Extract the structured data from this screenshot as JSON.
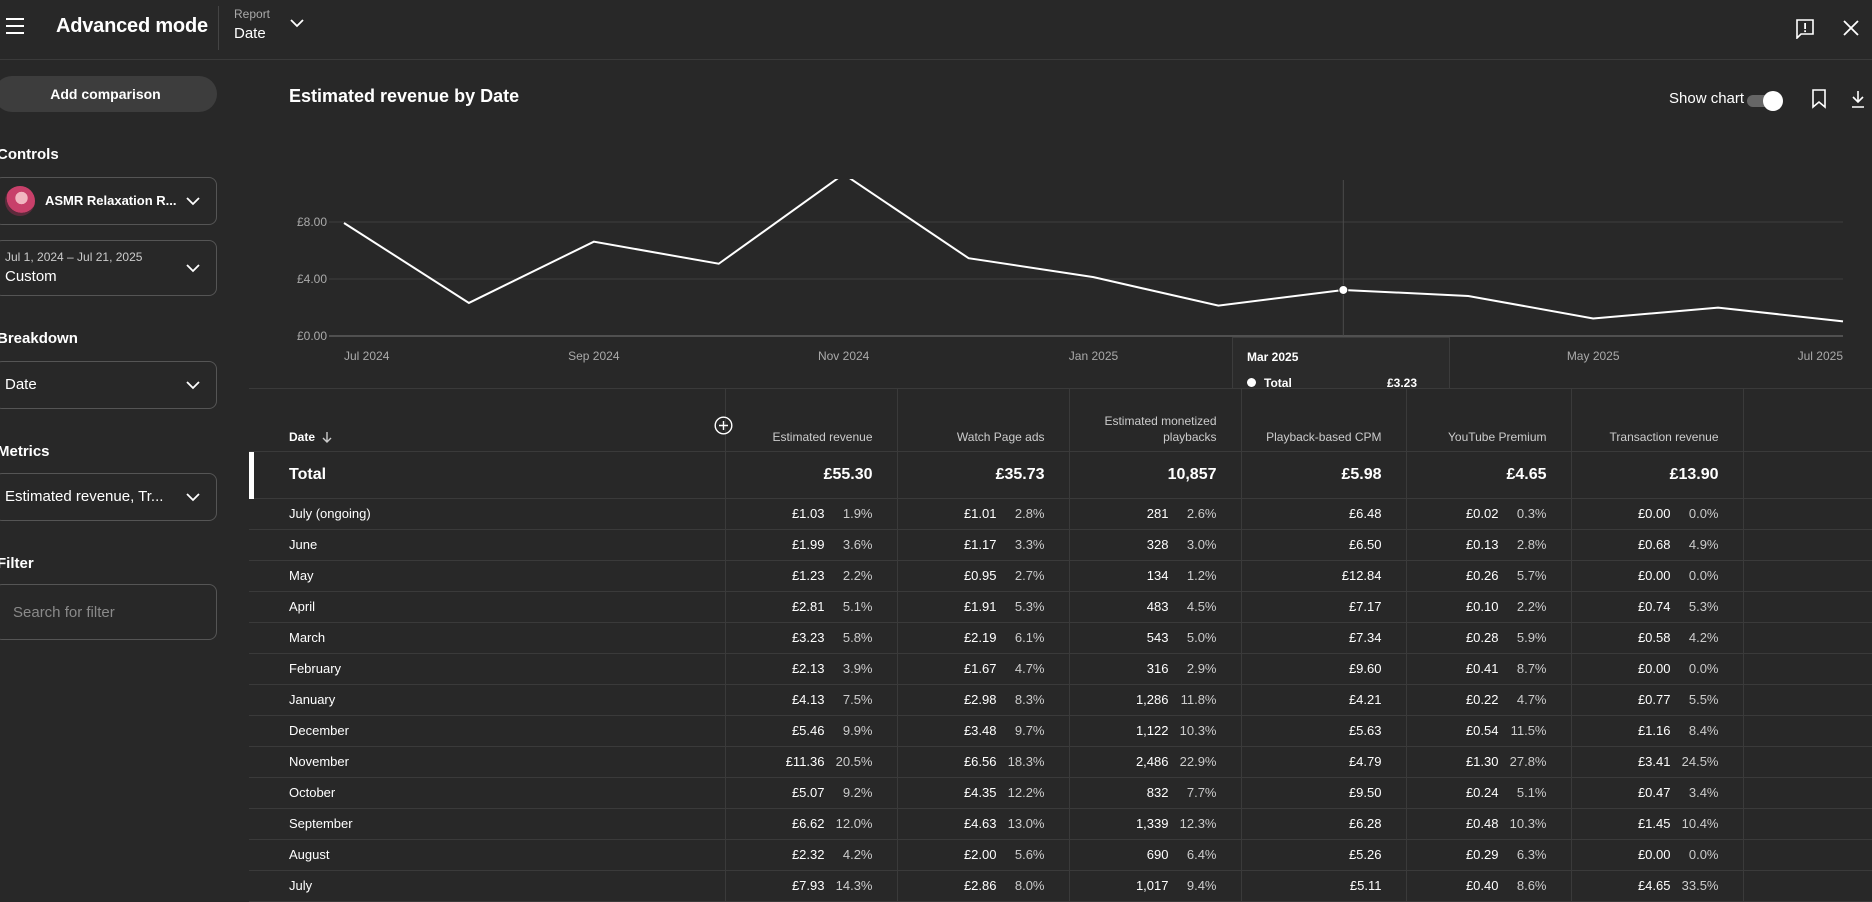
{
  "header": {
    "title": "Advanced mode",
    "report_label": "Report",
    "report_value": "Date"
  },
  "sidebar": {
    "add_comparison": "Add comparison",
    "controls_label": "Controls",
    "channel_name": "ASMR Relaxation R...",
    "date_range": "Jul 1, 2024 – Jul 21, 2025",
    "date_mode": "Custom",
    "breakdown_label": "Breakdown",
    "breakdown_value": "Date",
    "metrics_label": "Metrics",
    "metrics_value": "Estimated revenue, Tr...",
    "filter_label": "Filter",
    "filter_placeholder": "Search for filter"
  },
  "chart_header": {
    "title": "Estimated revenue by Date",
    "show_chart_label": "Show chart",
    "show_chart_on": true
  },
  "chart_data": {
    "type": "line",
    "title": "Estimated revenue by Date",
    "x": [
      "2024-07",
      "2024-08",
      "2024-09",
      "2024-10",
      "2024-11",
      "2024-12",
      "2025-01",
      "2025-02",
      "2025-03",
      "2025-04",
      "2025-05",
      "2025-06",
      "2025-07"
    ],
    "series": [
      {
        "name": "Total",
        "values": [
          7.93,
          2.32,
          6.62,
          5.07,
          11.36,
          5.46,
          4.13,
          2.13,
          3.23,
          2.81,
          1.23,
          1.99,
          1.03
        ]
      }
    ],
    "x_tick_labels": [
      "Jul 2024",
      "Sep 2024",
      "Nov 2024",
      "Jan 2025",
      "Mar 2025",
      "May 2025",
      "Jul 2025"
    ],
    "y_tick_labels": [
      "£0.00",
      "£4.00",
      "£8.00"
    ],
    "y_ticks": [
      0,
      4,
      8
    ],
    "ylim": [
      0,
      10
    ],
    "grid": true,
    "hover": {
      "index": 8,
      "date": "Mar 2025",
      "series": "Total",
      "value": "£3.23"
    },
    "line_color": "#ffffff"
  },
  "table": {
    "date_header": "Date",
    "columns": [
      "Estimated revenue",
      "Watch Page ads",
      "Estimated monetized playbacks",
      "Playback-based CPM",
      "YouTube Premium",
      "Transaction revenue"
    ],
    "total": {
      "label": "Total",
      "values": [
        "£55.30",
        "£35.73",
        "10,857",
        "£5.98",
        "£4.65",
        "£13.90"
      ]
    },
    "rows": [
      {
        "label": "July (ongoing)",
        "cells": [
          [
            "£1.03",
            "1.9%"
          ],
          [
            "£1.01",
            "2.8%"
          ],
          [
            "281",
            "2.6%"
          ],
          [
            "£6.48",
            ""
          ],
          [
            "£0.02",
            "0.3%"
          ],
          [
            "£0.00",
            "0.0%"
          ]
        ]
      },
      {
        "label": "June",
        "cells": [
          [
            "£1.99",
            "3.6%"
          ],
          [
            "£1.17",
            "3.3%"
          ],
          [
            "328",
            "3.0%"
          ],
          [
            "£6.50",
            ""
          ],
          [
            "£0.13",
            "2.8%"
          ],
          [
            "£0.68",
            "4.9%"
          ]
        ]
      },
      {
        "label": "May",
        "cells": [
          [
            "£1.23",
            "2.2%"
          ],
          [
            "£0.95",
            "2.7%"
          ],
          [
            "134",
            "1.2%"
          ],
          [
            "£12.84",
            ""
          ],
          [
            "£0.26",
            "5.7%"
          ],
          [
            "£0.00",
            "0.0%"
          ]
        ]
      },
      {
        "label": "April",
        "cells": [
          [
            "£2.81",
            "5.1%"
          ],
          [
            "£1.91",
            "5.3%"
          ],
          [
            "483",
            "4.5%"
          ],
          [
            "£7.17",
            ""
          ],
          [
            "£0.10",
            "2.2%"
          ],
          [
            "£0.74",
            "5.3%"
          ]
        ]
      },
      {
        "label": "March",
        "cells": [
          [
            "£3.23",
            "5.8%"
          ],
          [
            "£2.19",
            "6.1%"
          ],
          [
            "543",
            "5.0%"
          ],
          [
            "£7.34",
            ""
          ],
          [
            "£0.28",
            "5.9%"
          ],
          [
            "£0.58",
            "4.2%"
          ]
        ]
      },
      {
        "label": "February",
        "cells": [
          [
            "£2.13",
            "3.9%"
          ],
          [
            "£1.67",
            "4.7%"
          ],
          [
            "316",
            "2.9%"
          ],
          [
            "£9.60",
            ""
          ],
          [
            "£0.41",
            "8.7%"
          ],
          [
            "£0.00",
            "0.0%"
          ]
        ]
      },
      {
        "label": "January",
        "cells": [
          [
            "£4.13",
            "7.5%"
          ],
          [
            "£2.98",
            "8.3%"
          ],
          [
            "1,286",
            "11.8%"
          ],
          [
            "£4.21",
            ""
          ],
          [
            "£0.22",
            "4.7%"
          ],
          [
            "£0.77",
            "5.5%"
          ]
        ]
      },
      {
        "label": "December",
        "cells": [
          [
            "£5.46",
            "9.9%"
          ],
          [
            "£3.48",
            "9.7%"
          ],
          [
            "1,122",
            "10.3%"
          ],
          [
            "£5.63",
            ""
          ],
          [
            "£0.54",
            "11.5%"
          ],
          [
            "£1.16",
            "8.4%"
          ]
        ]
      },
      {
        "label": "November",
        "cells": [
          [
            "£11.36",
            "20.5%"
          ],
          [
            "£6.56",
            "18.3%"
          ],
          [
            "2,486",
            "22.9%"
          ],
          [
            "£4.79",
            ""
          ],
          [
            "£1.30",
            "27.8%"
          ],
          [
            "£3.41",
            "24.5%"
          ]
        ]
      },
      {
        "label": "October",
        "cells": [
          [
            "£5.07",
            "9.2%"
          ],
          [
            "£4.35",
            "12.2%"
          ],
          [
            "832",
            "7.7%"
          ],
          [
            "£9.50",
            ""
          ],
          [
            "£0.24",
            "5.1%"
          ],
          [
            "£0.47",
            "3.4%"
          ]
        ]
      },
      {
        "label": "September",
        "cells": [
          [
            "£6.62",
            "12.0%"
          ],
          [
            "£4.63",
            "13.0%"
          ],
          [
            "1,339",
            "12.3%"
          ],
          [
            "£6.28",
            ""
          ],
          [
            "£0.48",
            "10.3%"
          ],
          [
            "£1.45",
            "10.4%"
          ]
        ]
      },
      {
        "label": "August",
        "cells": [
          [
            "£2.32",
            "4.2%"
          ],
          [
            "£2.00",
            "5.6%"
          ],
          [
            "690",
            "6.4%"
          ],
          [
            "£5.26",
            ""
          ],
          [
            "£0.29",
            "6.3%"
          ],
          [
            "£0.00",
            "0.0%"
          ]
        ]
      },
      {
        "label": "July",
        "cells": [
          [
            "£7.93",
            "14.3%"
          ],
          [
            "£2.86",
            "8.0%"
          ],
          [
            "1,017",
            "9.4%"
          ],
          [
            "£5.11",
            ""
          ],
          [
            "£0.40",
            "8.6%"
          ],
          [
            "£4.65",
            "33.5%"
          ]
        ]
      }
    ]
  }
}
